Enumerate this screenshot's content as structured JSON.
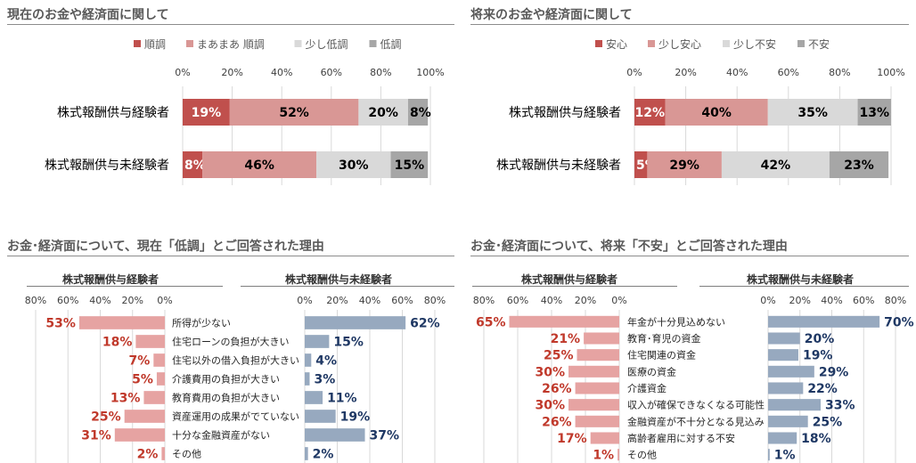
{
  "panels": {
    "p1": {
      "title": "現在のお金や経済面に関して"
    },
    "p2": {
      "title": "将来のお金や経済面に関して"
    },
    "p3": {
      "title": "お金･経済面について、現在「低調」とご回答された理由",
      "left_label": "株式報酬供与経験者",
      "right_label": "株式報酬供与未経験者"
    },
    "p4": {
      "title": "お金･経済面について、将来「不安」とご回答された理由",
      "left_label": "株式報酬供与経験者",
      "right_label": "株式報酬供与未経験者"
    }
  },
  "chart_data": [
    {
      "type": "bar",
      "orientation": "horizontal-stacked-100",
      "title": "現在のお金や経済面に関して",
      "categories": [
        "株式報酬供与経験者",
        "株式報酬供与未経験者"
      ],
      "series": [
        {
          "name": "順調",
          "values": [
            19,
            8
          ],
          "color": "#c0504d"
        },
        {
          "name": "まあまあ 順調",
          "values": [
            52,
            46
          ],
          "color": "#d99795"
        },
        {
          "name": "少し低調",
          "values": [
            20,
            30
          ],
          "color": "#d9d9d9"
        },
        {
          "name": "低調",
          "values": [
            8,
            15
          ],
          "color": "#a6a6a6"
        }
      ],
      "xticks": [
        "0%",
        "20%",
        "40%",
        "60%",
        "80%",
        "100%"
      ],
      "xlim": [
        0,
        100
      ],
      "legend": "top"
    },
    {
      "type": "bar",
      "orientation": "horizontal-stacked-100",
      "title": "将来のお金や経済面に関して",
      "categories": [
        "株式報酬供与経験者",
        "株式報酬供与未経験者"
      ],
      "series": [
        {
          "name": "安心",
          "values": [
            12,
            5
          ],
          "color": "#c0504d"
        },
        {
          "name": "少し安心",
          "values": [
            40,
            29
          ],
          "color": "#d99795"
        },
        {
          "name": "少し不安",
          "values": [
            35,
            42
          ],
          "color": "#d9d9d9"
        },
        {
          "name": "不安",
          "values": [
            13,
            23
          ],
          "color": "#a6a6a6"
        }
      ],
      "xticks": [
        "0%",
        "20%",
        "40%",
        "60%",
        "80%",
        "100%"
      ],
      "xlim": [
        0,
        100
      ],
      "legend": "top"
    },
    {
      "type": "bar",
      "orientation": "butterfly",
      "title": "お金･経済面について、現在「低調」とご回答された理由",
      "categories": [
        "所得が少ない",
        "住宅ローンの負担が大きい",
        "住宅以外の借入負担が大きい",
        "介護費用の負担が大きい",
        "教育費用の負担が大きい",
        "資産運用の成果がでていない",
        "十分な金融資産がない",
        "その他"
      ],
      "series": [
        {
          "name": "株式報酬供与経験者",
          "values": [
            53,
            18,
            7,
            5,
            13,
            25,
            31,
            2
          ],
          "color": "#e6a3a2",
          "label_color": "#c0392b"
        },
        {
          "name": "株式報酬供与未経験者",
          "values": [
            62,
            15,
            4,
            3,
            11,
            19,
            37,
            2
          ],
          "color": "#97a9bf",
          "label_color": "#1f3864"
        }
      ],
      "left_ticks": [
        "80%",
        "60%",
        "40%",
        "20%",
        "0%"
      ],
      "right_ticks": [
        "0%",
        "20%",
        "40%",
        "60%",
        "80%"
      ],
      "xlim": [
        0,
        80
      ]
    },
    {
      "type": "bar",
      "orientation": "butterfly",
      "title": "お金･経済面について、将来「不安」とご回答された理由",
      "categories": [
        "年金が十分見込めない",
        "教育･育児の資金",
        "住宅関連の資金",
        "医療の資金",
        "介護資金",
        "収入が確保できなくなる可能性",
        "金融資産が不十分となる見込み",
        "高齢者雇用に対する不安",
        "その他"
      ],
      "series": [
        {
          "name": "株式報酬供与経験者",
          "values": [
            65,
            21,
            25,
            30,
            26,
            30,
            26,
            17,
            1
          ],
          "color": "#e6a3a2",
          "label_color": "#c0392b"
        },
        {
          "name": "株式報酬供与未経験者",
          "values": [
            70,
            20,
            19,
            29,
            22,
            33,
            25,
            18,
            1
          ],
          "color": "#97a9bf",
          "label_color": "#1f3864"
        }
      ],
      "left_ticks": [
        "80%",
        "60%",
        "40%",
        "20%",
        "0%"
      ],
      "right_ticks": [
        "0%",
        "20%",
        "40%",
        "60%",
        "80%"
      ],
      "xlim": [
        0,
        80
      ]
    }
  ]
}
